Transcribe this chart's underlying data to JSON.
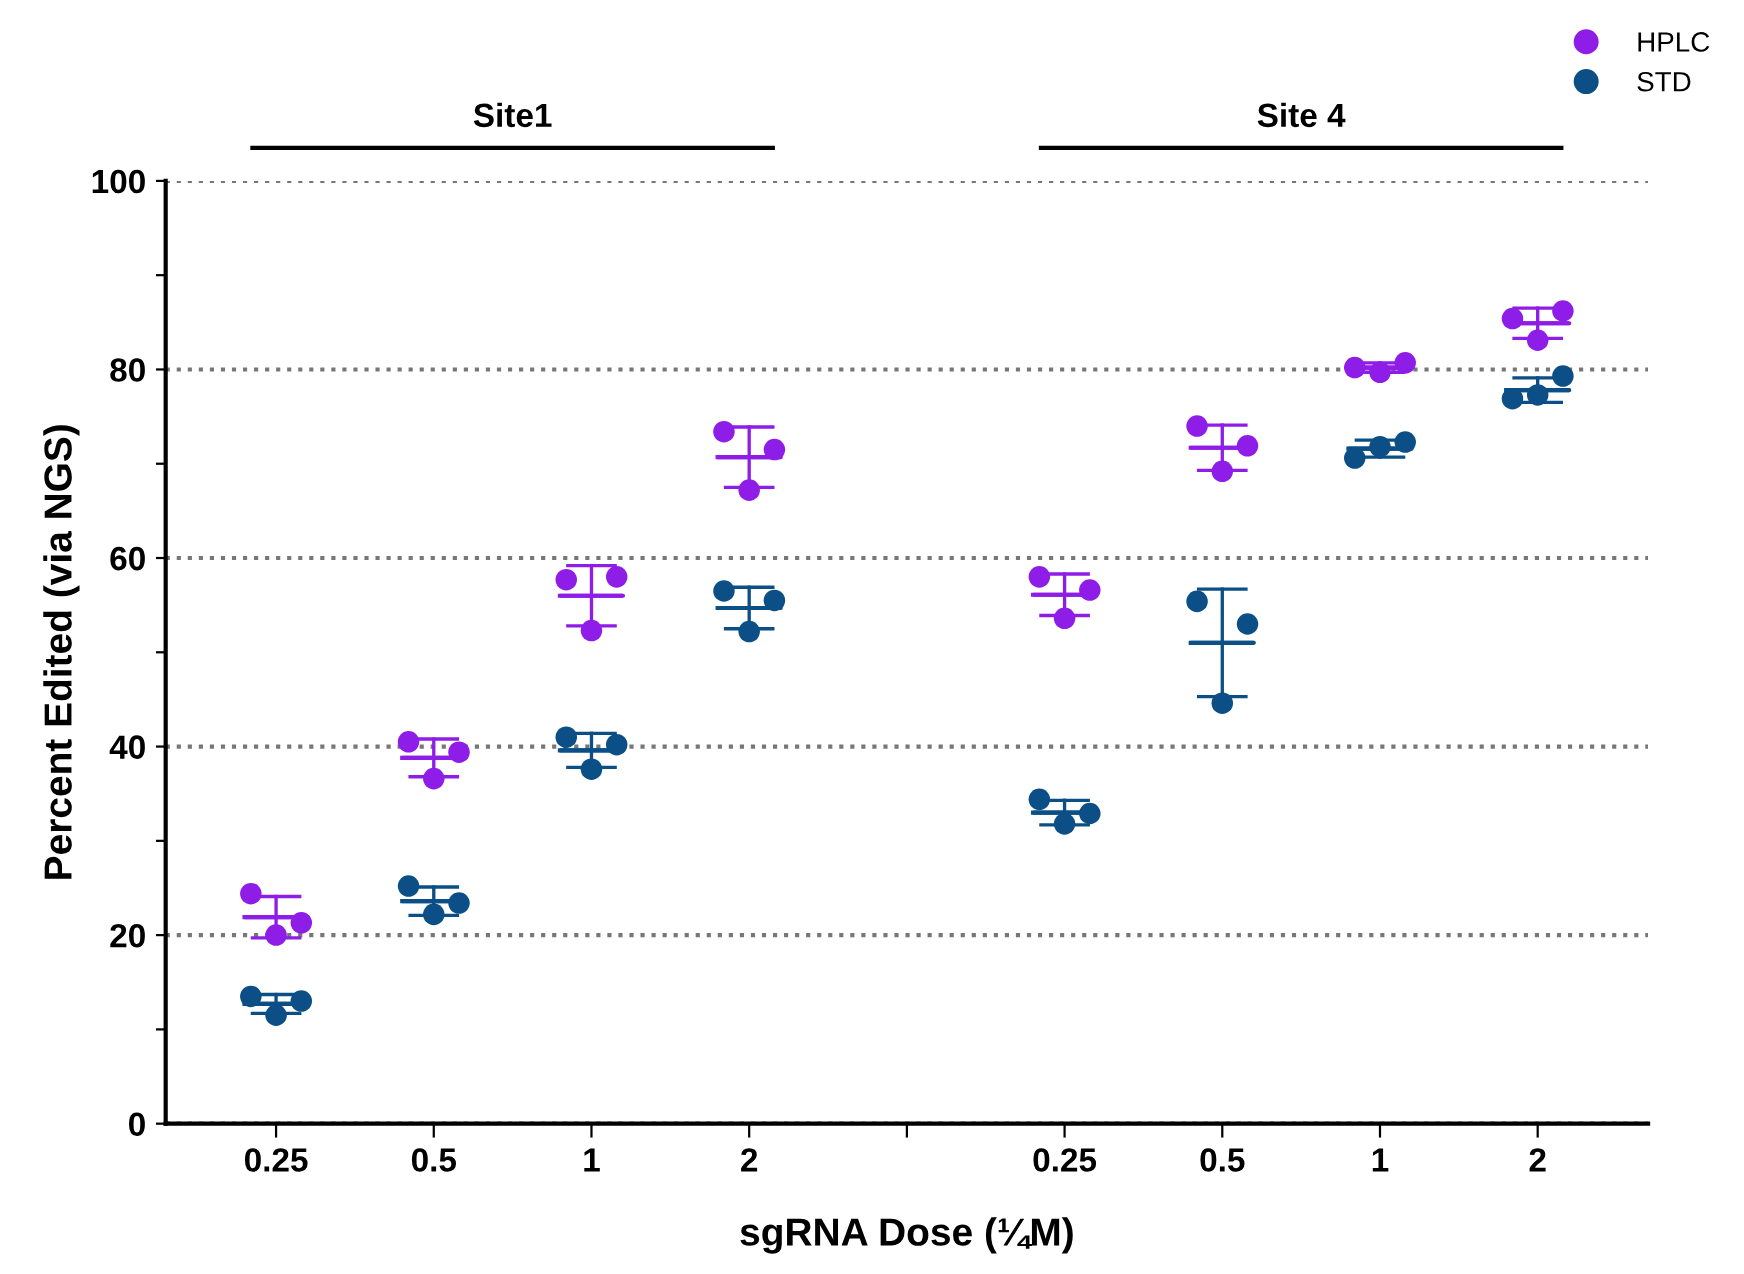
{
  "chart_data": {
    "type": "scatter",
    "xlabel": "sgRNA Dose (¼M)",
    "ylabel": "Percent Edited (via NGS)",
    "categories": [
      "0.25",
      "0.5",
      "1",
      "2",
      null,
      "0.25",
      "0.5",
      "1",
      "2"
    ],
    "annotations": [
      "Site1",
      "Site 4"
    ],
    "series": [
      {
        "name": "HPLC",
        "color": "#8f1de8",
        "values": [
          24.4,
          40.5,
          57.7,
          73.4,
          null,
          58,
          74,
          80.2,
          85.4
        ]
      },
      {
        "color": "#8f1de8",
        "values": [
          21.3,
          39.4,
          58,
          71.5,
          null,
          56.6,
          71.9,
          80.7,
          86.2
        ]
      },
      {
        "color": "#8f1de8",
        "values": [
          20,
          36.6,
          52.3,
          67.2,
          null,
          53.6,
          69.2,
          79.7,
          83.1
        ]
      },
      {
        "color": "#8f1de8",
        "type": "box",
        "boxes": [
          {
            "low": 19.7,
            "q1": 21.9,
            "median": 21.9,
            "q3": 21.9,
            "high": 24.1
          },
          {
            "low": 36.8,
            "q1": 38.8,
            "median": 38.8,
            "q3": 38.8,
            "high": 40.8
          },
          {
            "low": 52.8,
            "q1": 56,
            "median": 56,
            "q3": 56,
            "high": 59.2
          },
          {
            "low": 67.5,
            "q1": 70.7,
            "median": 70.7,
            "q3": 70.7,
            "high": 73.9
          },
          null,
          {
            "low": 53.9,
            "q1": 56.1,
            "median": 56.1,
            "q3": 56.1,
            "high": 58.3
          },
          {
            "low": 69.3,
            "q1": 71.7,
            "median": 71.7,
            "q3": 71.7,
            "high": 74.1
          },
          {
            "low": 79.7,
            "q1": 80.2,
            "median": 80.2,
            "q3": 80.2,
            "high": 80.7
          },
          {
            "low": 83.3,
            "q1": 84.9,
            "median": 84.9,
            "q3": 84.9,
            "high": 86.5
          }
        ]
      },
      {
        "name": "STD",
        "color": "#0b4f86",
        "values": [
          13.5,
          25.2,
          41,
          56.5,
          null,
          34.4,
          55.4,
          70.6,
          76.9
        ]
      },
      {
        "color": "#0b4f86",
        "values": [
          13,
          23.4,
          40.2,
          55.5,
          null,
          32.9,
          53,
          72.3,
          79.3
        ]
      },
      {
        "color": "#0b4f86",
        "values": [
          11.5,
          22.2,
          37.6,
          52.2,
          null,
          31.8,
          44.6,
          71.8,
          77.3
        ]
      },
      {
        "color": "#0b4f86",
        "type": "box",
        "boxes": [
          {
            "low": 11.7,
            "q1": 12.7,
            "median": 12.7,
            "q3": 12.7,
            "high": 13.7
          },
          {
            "low": 22.1,
            "q1": 23.6,
            "median": 23.6,
            "q3": 23.6,
            "high": 25.1
          },
          {
            "low": 37.8,
            "q1": 39.6,
            "median": 39.6,
            "q3": 39.6,
            "high": 41.4
          },
          {
            "low": 52.5,
            "q1": 54.7,
            "median": 54.7,
            "q3": 54.7,
            "high": 56.9
          },
          null,
          {
            "low": 31.7,
            "q1": 33,
            "median": 33,
            "q3": 33,
            "high": 34.3
          },
          {
            "low": 45.3,
            "q1": 51,
            "median": 51,
            "q3": 51,
            "high": 56.7
          },
          {
            "low": 70.7,
            "q1": 71.6,
            "median": 71.6,
            "q3": 71.6,
            "high": 72.5
          },
          {
            "low": 76.5,
            "q1": 77.8,
            "median": 77.8,
            "q3": 77.8,
            "high": 79.1
          }
        ]
      }
    ],
    "ylim": [
      0,
      100
    ],
    "yticks": [
      0,
      {
        "value": 10,
        "label": null
      },
      20,
      {
        "value": 30,
        "label": null
      },
      40,
      {
        "value": 50,
        "label": null
      },
      60,
      {
        "value": 70,
        "label": null
      },
      80,
      {
        "value": 90,
        "label": null
      },
      100
    ],
    "grid": "y",
    "legend": "top right",
    "marker": "circle"
  }
}
